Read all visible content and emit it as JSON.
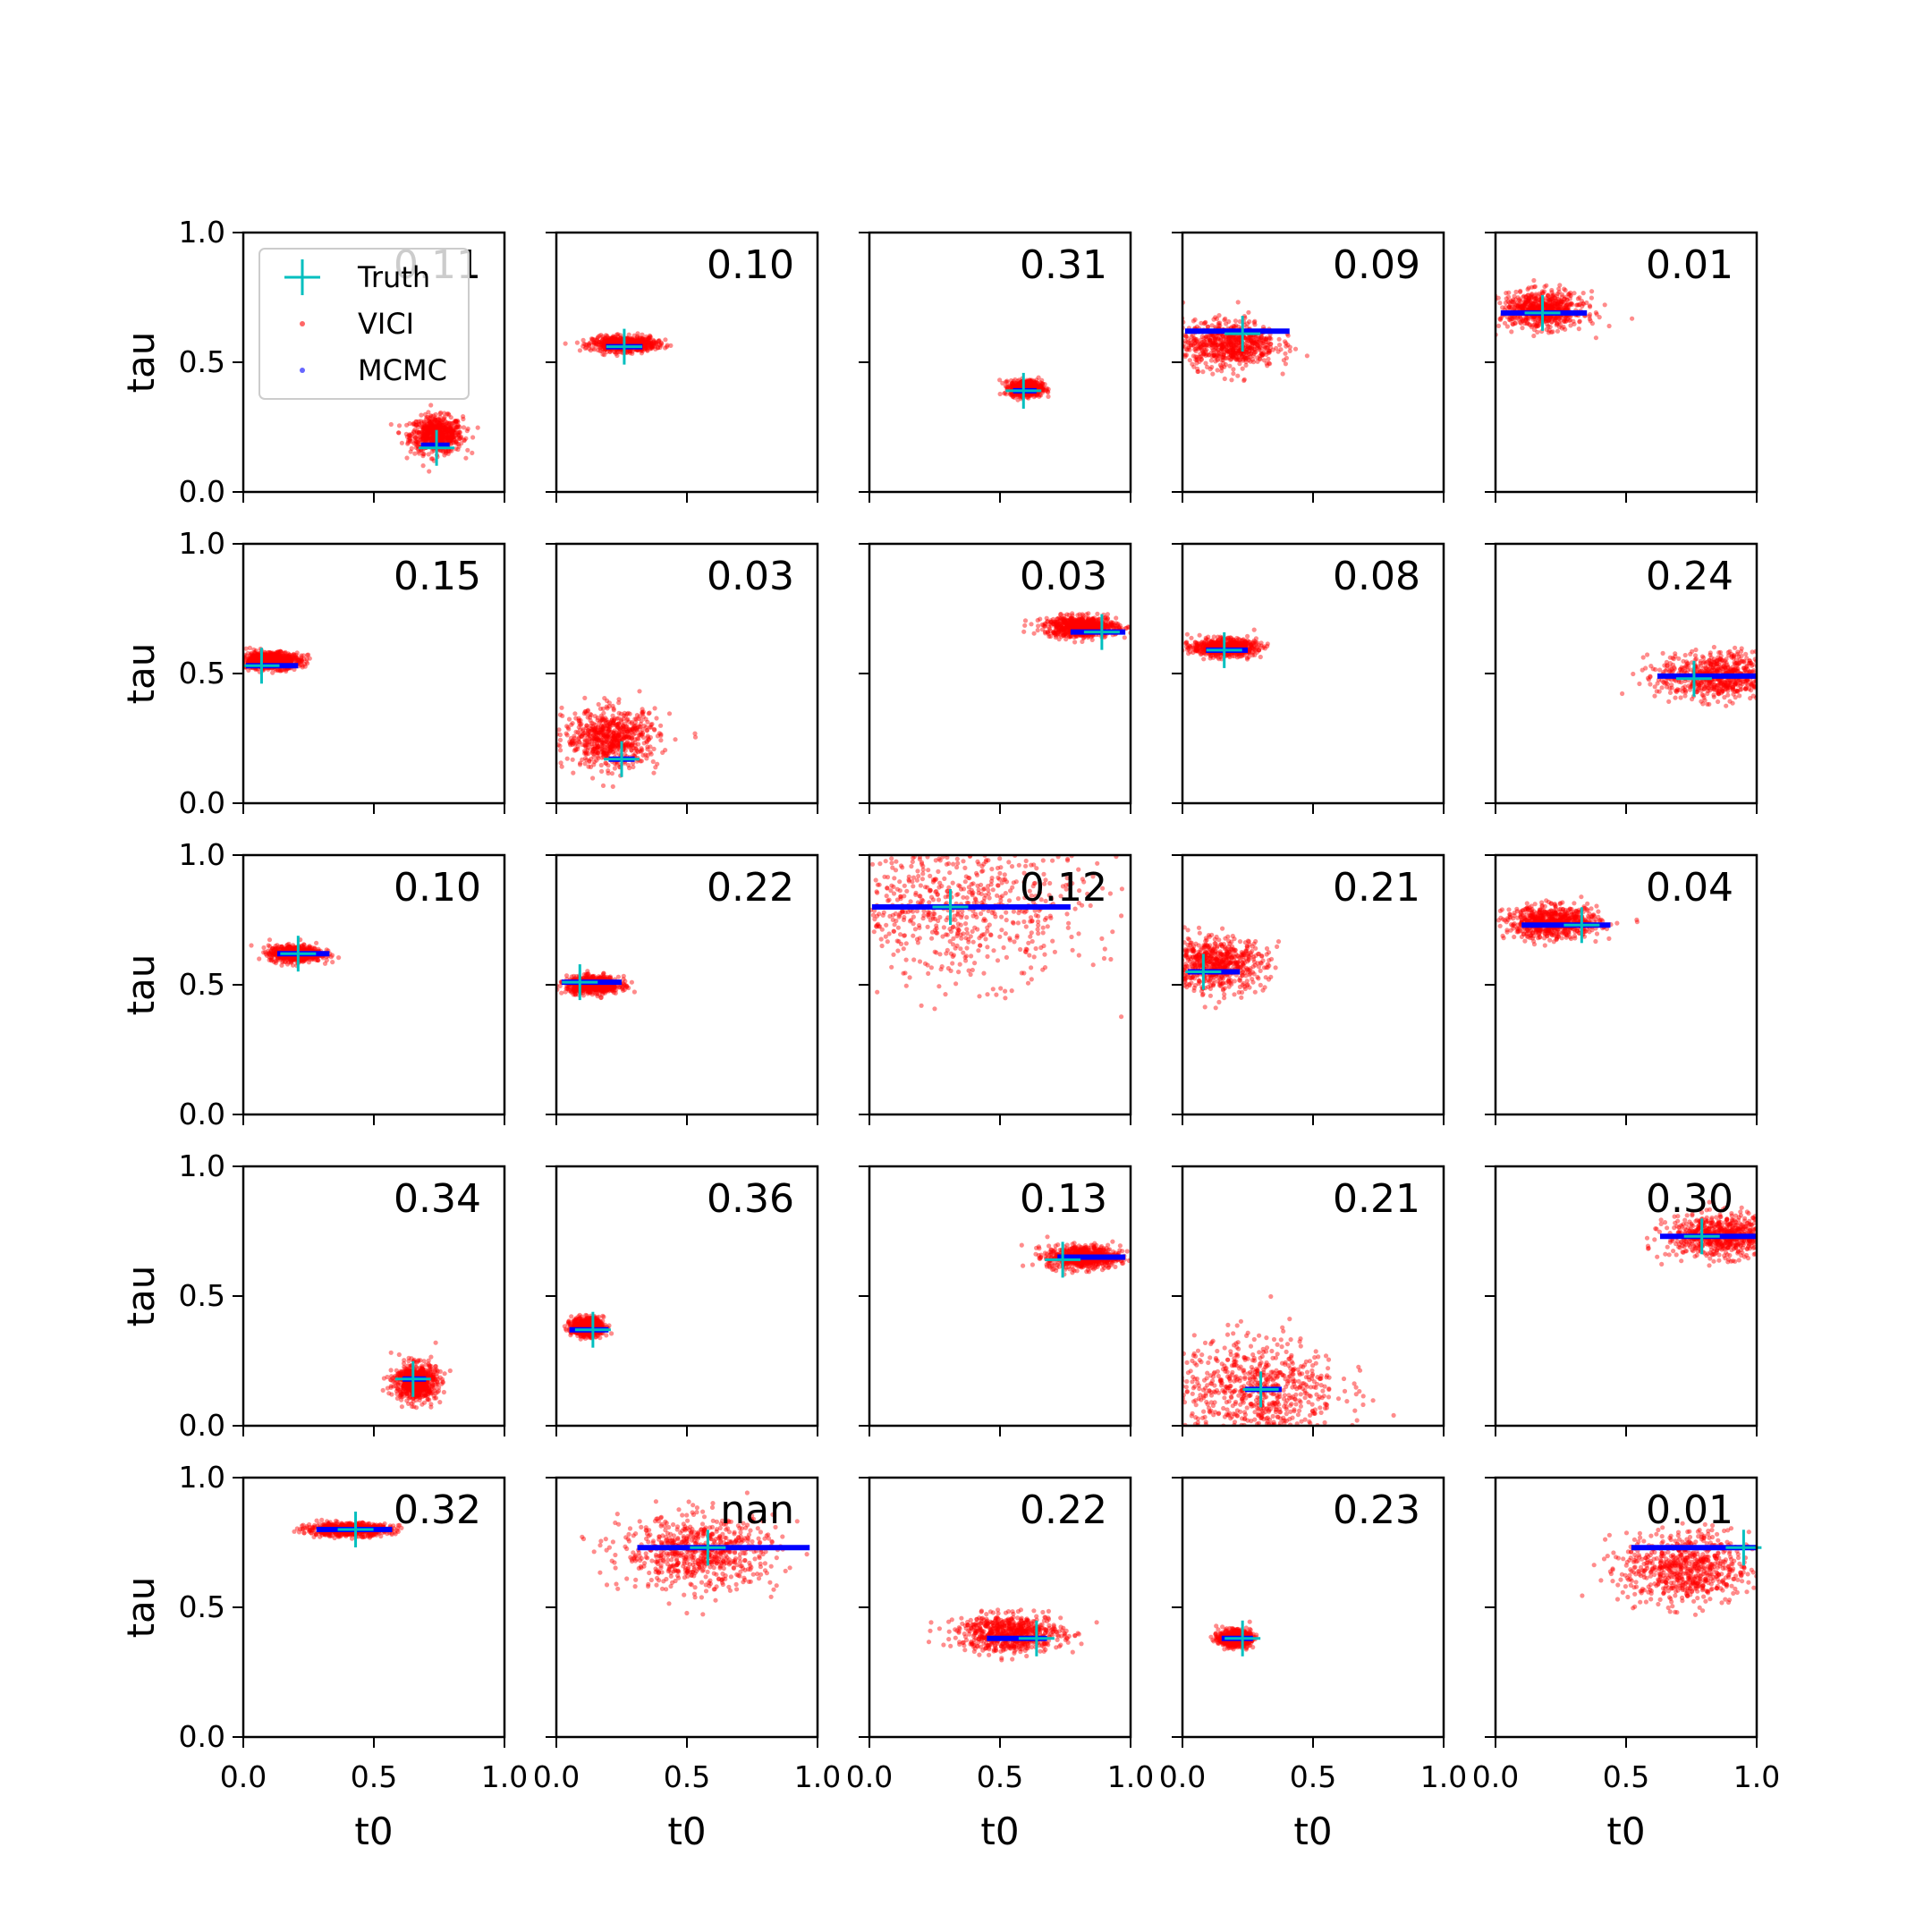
{
  "chart_data": {
    "type": "scatter",
    "grid": false,
    "xlabel": "t0",
    "ylabel": "tau",
    "xlim": [
      0,
      1
    ],
    "ylim": [
      0,
      1
    ],
    "x_ticks": [
      "0.0",
      "0.5",
      "1.0"
    ],
    "y_ticks": [
      "0.0",
      "0.5",
      "1.0"
    ],
    "legend": {
      "placement": "upper-left of first panel",
      "entries": [
        {
          "label": "Truth",
          "marker": "plus",
          "color": "#00bfbf"
        },
        {
          "label": "VICI",
          "marker": "dot",
          "color": "#ff0000"
        },
        {
          "label": "MCMC",
          "marker": "dot",
          "color": "#0000ff"
        }
      ]
    },
    "colors": {
      "truth": "#00bfbf",
      "vici": "#ff0000",
      "mcmc": "#0000ff"
    },
    "panels": [
      {
        "label": "0.11",
        "truth": [
          0.74,
          0.17
        ],
        "vici": {
          "mean": [
            0.74,
            0.22
          ],
          "sd": [
            0.05,
            0.035
          ]
        },
        "mcmc": {
          "x": [
            0.68,
            0.79
          ],
          "y": 0.18
        }
      },
      {
        "label": "0.10",
        "truth": [
          0.26,
          0.56
        ],
        "vici": {
          "mean": [
            0.26,
            0.57
          ],
          "sd": [
            0.06,
            0.014
          ]
        },
        "mcmc": {
          "x": [
            0.19,
            0.33
          ],
          "y": 0.56
        }
      },
      {
        "label": "0.31",
        "truth": [
          0.59,
          0.39
        ],
        "vici": {
          "mean": [
            0.6,
            0.4
          ],
          "sd": [
            0.03,
            0.015
          ]
        },
        "mcmc": {
          "x": [
            0.55,
            0.64
          ],
          "y": 0.39
        }
      },
      {
        "label": "0.09",
        "truth": [
          0.23,
          0.61
        ],
        "vici": {
          "mean": [
            0.18,
            0.57
          ],
          "sd": [
            0.09,
            0.045
          ]
        },
        "mcmc": {
          "x": [
            0.01,
            0.41
          ],
          "y": 0.62
        }
      },
      {
        "label": "0.01",
        "truth": [
          0.18,
          0.69
        ],
        "vici": {
          "mean": [
            0.18,
            0.7
          ],
          "sd": [
            0.08,
            0.035
          ]
        },
        "mcmc": {
          "x": [
            0.02,
            0.35
          ],
          "y": 0.69
        }
      },
      {
        "label": "0.15",
        "truth": [
          0.07,
          0.53
        ],
        "vici": {
          "mean": [
            0.1,
            0.55
          ],
          "sd": [
            0.06,
            0.016
          ]
        },
        "mcmc": {
          "x": [
            0.01,
            0.21
          ],
          "y": 0.53
        }
      },
      {
        "label": "0.03",
        "truth": [
          0.25,
          0.17
        ],
        "vici": {
          "mean": [
            0.21,
            0.25
          ],
          "sd": [
            0.09,
            0.055
          ]
        },
        "mcmc": {
          "x": [
            0.2,
            0.3
          ],
          "y": 0.17
        }
      },
      {
        "label": "0.03",
        "truth": [
          0.89,
          0.66
        ],
        "vici": {
          "mean": [
            0.81,
            0.68
          ],
          "sd": [
            0.07,
            0.02
          ]
        },
        "mcmc": {
          "x": [
            0.77,
            0.98
          ],
          "y": 0.66
        }
      },
      {
        "label": "0.08",
        "truth": [
          0.16,
          0.59
        ],
        "vici": {
          "mean": [
            0.16,
            0.6
          ],
          "sd": [
            0.06,
            0.016
          ]
        },
        "mcmc": {
          "x": [
            0.09,
            0.25
          ],
          "y": 0.59
        }
      },
      {
        "label": "0.24",
        "truth": [
          0.76,
          0.48
        ],
        "vici": {
          "mean": [
            0.85,
            0.49
          ],
          "sd": [
            0.11,
            0.045
          ]
        },
        "mcmc": {
          "x": [
            0.62,
            1.0
          ],
          "y": 0.49
        }
      },
      {
        "label": "0.10",
        "truth": [
          0.21,
          0.62
        ],
        "vici": {
          "mean": [
            0.2,
            0.62
          ],
          "sd": [
            0.05,
            0.015
          ]
        },
        "mcmc": {
          "x": [
            0.13,
            0.33
          ],
          "y": 0.62
        }
      },
      {
        "label": "0.22",
        "truth": [
          0.09,
          0.51
        ],
        "vici": {
          "mean": [
            0.14,
            0.5
          ],
          "sd": [
            0.05,
            0.016
          ]
        },
        "mcmc": {
          "x": [
            0.02,
            0.25
          ],
          "y": 0.51
        }
      },
      {
        "label": "0.12",
        "truth": [
          0.31,
          0.8
        ],
        "vici": {
          "mean": [
            0.35,
            0.8
          ],
          "sd": [
            0.24,
            0.14
          ]
        },
        "mcmc": {
          "x": [
            0.01,
            0.77
          ],
          "y": 0.8
        }
      },
      {
        "label": "0.21",
        "truth": [
          0.08,
          0.55
        ],
        "vici": {
          "mean": [
            0.12,
            0.58
          ],
          "sd": [
            0.1,
            0.05
          ]
        },
        "mcmc": {
          "x": [
            0.02,
            0.22
          ],
          "y": 0.55
        }
      },
      {
        "label": "0.04",
        "truth": [
          0.33,
          0.73
        ],
        "vici": {
          "mean": [
            0.22,
            0.74
          ],
          "sd": [
            0.09,
            0.03
          ]
        },
        "mcmc": {
          "x": [
            0.1,
            0.44
          ],
          "y": 0.73
        }
      },
      {
        "label": "0.34",
        "truth": [
          0.65,
          0.18
        ],
        "vici": {
          "mean": [
            0.66,
            0.17
          ],
          "sd": [
            0.04,
            0.035
          ]
        },
        "mcmc": {
          "x": [
            0.61,
            0.7
          ],
          "y": 0.18
        }
      },
      {
        "label": "0.36",
        "truth": [
          0.14,
          0.37
        ],
        "vici": {
          "mean": [
            0.12,
            0.38
          ],
          "sd": [
            0.03,
            0.018
          ]
        },
        "mcmc": {
          "x": [
            0.05,
            0.2
          ],
          "y": 0.37
        }
      },
      {
        "label": "0.13",
        "truth": [
          0.74,
          0.64
        ],
        "vici": {
          "mean": [
            0.82,
            0.65
          ],
          "sd": [
            0.07,
            0.022
          ]
        },
        "mcmc": {
          "x": [
            0.72,
            0.98
          ],
          "y": 0.65
        }
      },
      {
        "label": "0.21",
        "truth": [
          0.3,
          0.14
        ],
        "vici": {
          "mean": [
            0.28,
            0.14
          ],
          "sd": [
            0.16,
            0.1
          ]
        },
        "mcmc": {
          "x": [
            0.24,
            0.38
          ],
          "y": 0.14
        }
      },
      {
        "label": "0.30",
        "truth": [
          0.79,
          0.73
        ],
        "vici": {
          "mean": [
            0.86,
            0.73
          ],
          "sd": [
            0.1,
            0.04
          ]
        },
        "mcmc": {
          "x": [
            0.63,
            1.0
          ],
          "y": 0.73
        }
      },
      {
        "label": "0.32",
        "truth": [
          0.43,
          0.8
        ],
        "vici": {
          "mean": [
            0.4,
            0.8
          ],
          "sd": [
            0.08,
            0.012
          ]
        },
        "mcmc": {
          "x": [
            0.28,
            0.57
          ],
          "y": 0.8
        }
      },
      {
        "label": "nan",
        "truth": [
          0.58,
          0.73
        ],
        "vici": {
          "mean": [
            0.55,
            0.71
          ],
          "sd": [
            0.15,
            0.07
          ]
        },
        "mcmc": {
          "x": [
            0.31,
            0.97
          ],
          "y": 0.73
        }
      },
      {
        "label": "0.22",
        "truth": [
          0.64,
          0.38
        ],
        "vici": {
          "mean": [
            0.54,
            0.4
          ],
          "sd": [
            0.1,
            0.035
          ]
        },
        "mcmc": {
          "x": [
            0.45,
            0.68
          ],
          "y": 0.38
        }
      },
      {
        "label": "0.23",
        "truth": [
          0.23,
          0.38
        ],
        "vici": {
          "mean": [
            0.2,
            0.38
          ],
          "sd": [
            0.03,
            0.015
          ]
        },
        "mcmc": {
          "x": [
            0.15,
            0.27
          ],
          "y": 0.38
        }
      },
      {
        "label": "0.01",
        "truth": [
          0.95,
          0.73
        ],
        "vici": {
          "mean": [
            0.73,
            0.65
          ],
          "sd": [
            0.12,
            0.07
          ]
        },
        "mcmc": {
          "x": [
            0.52,
            1.0
          ],
          "y": 0.73
        }
      }
    ]
  }
}
